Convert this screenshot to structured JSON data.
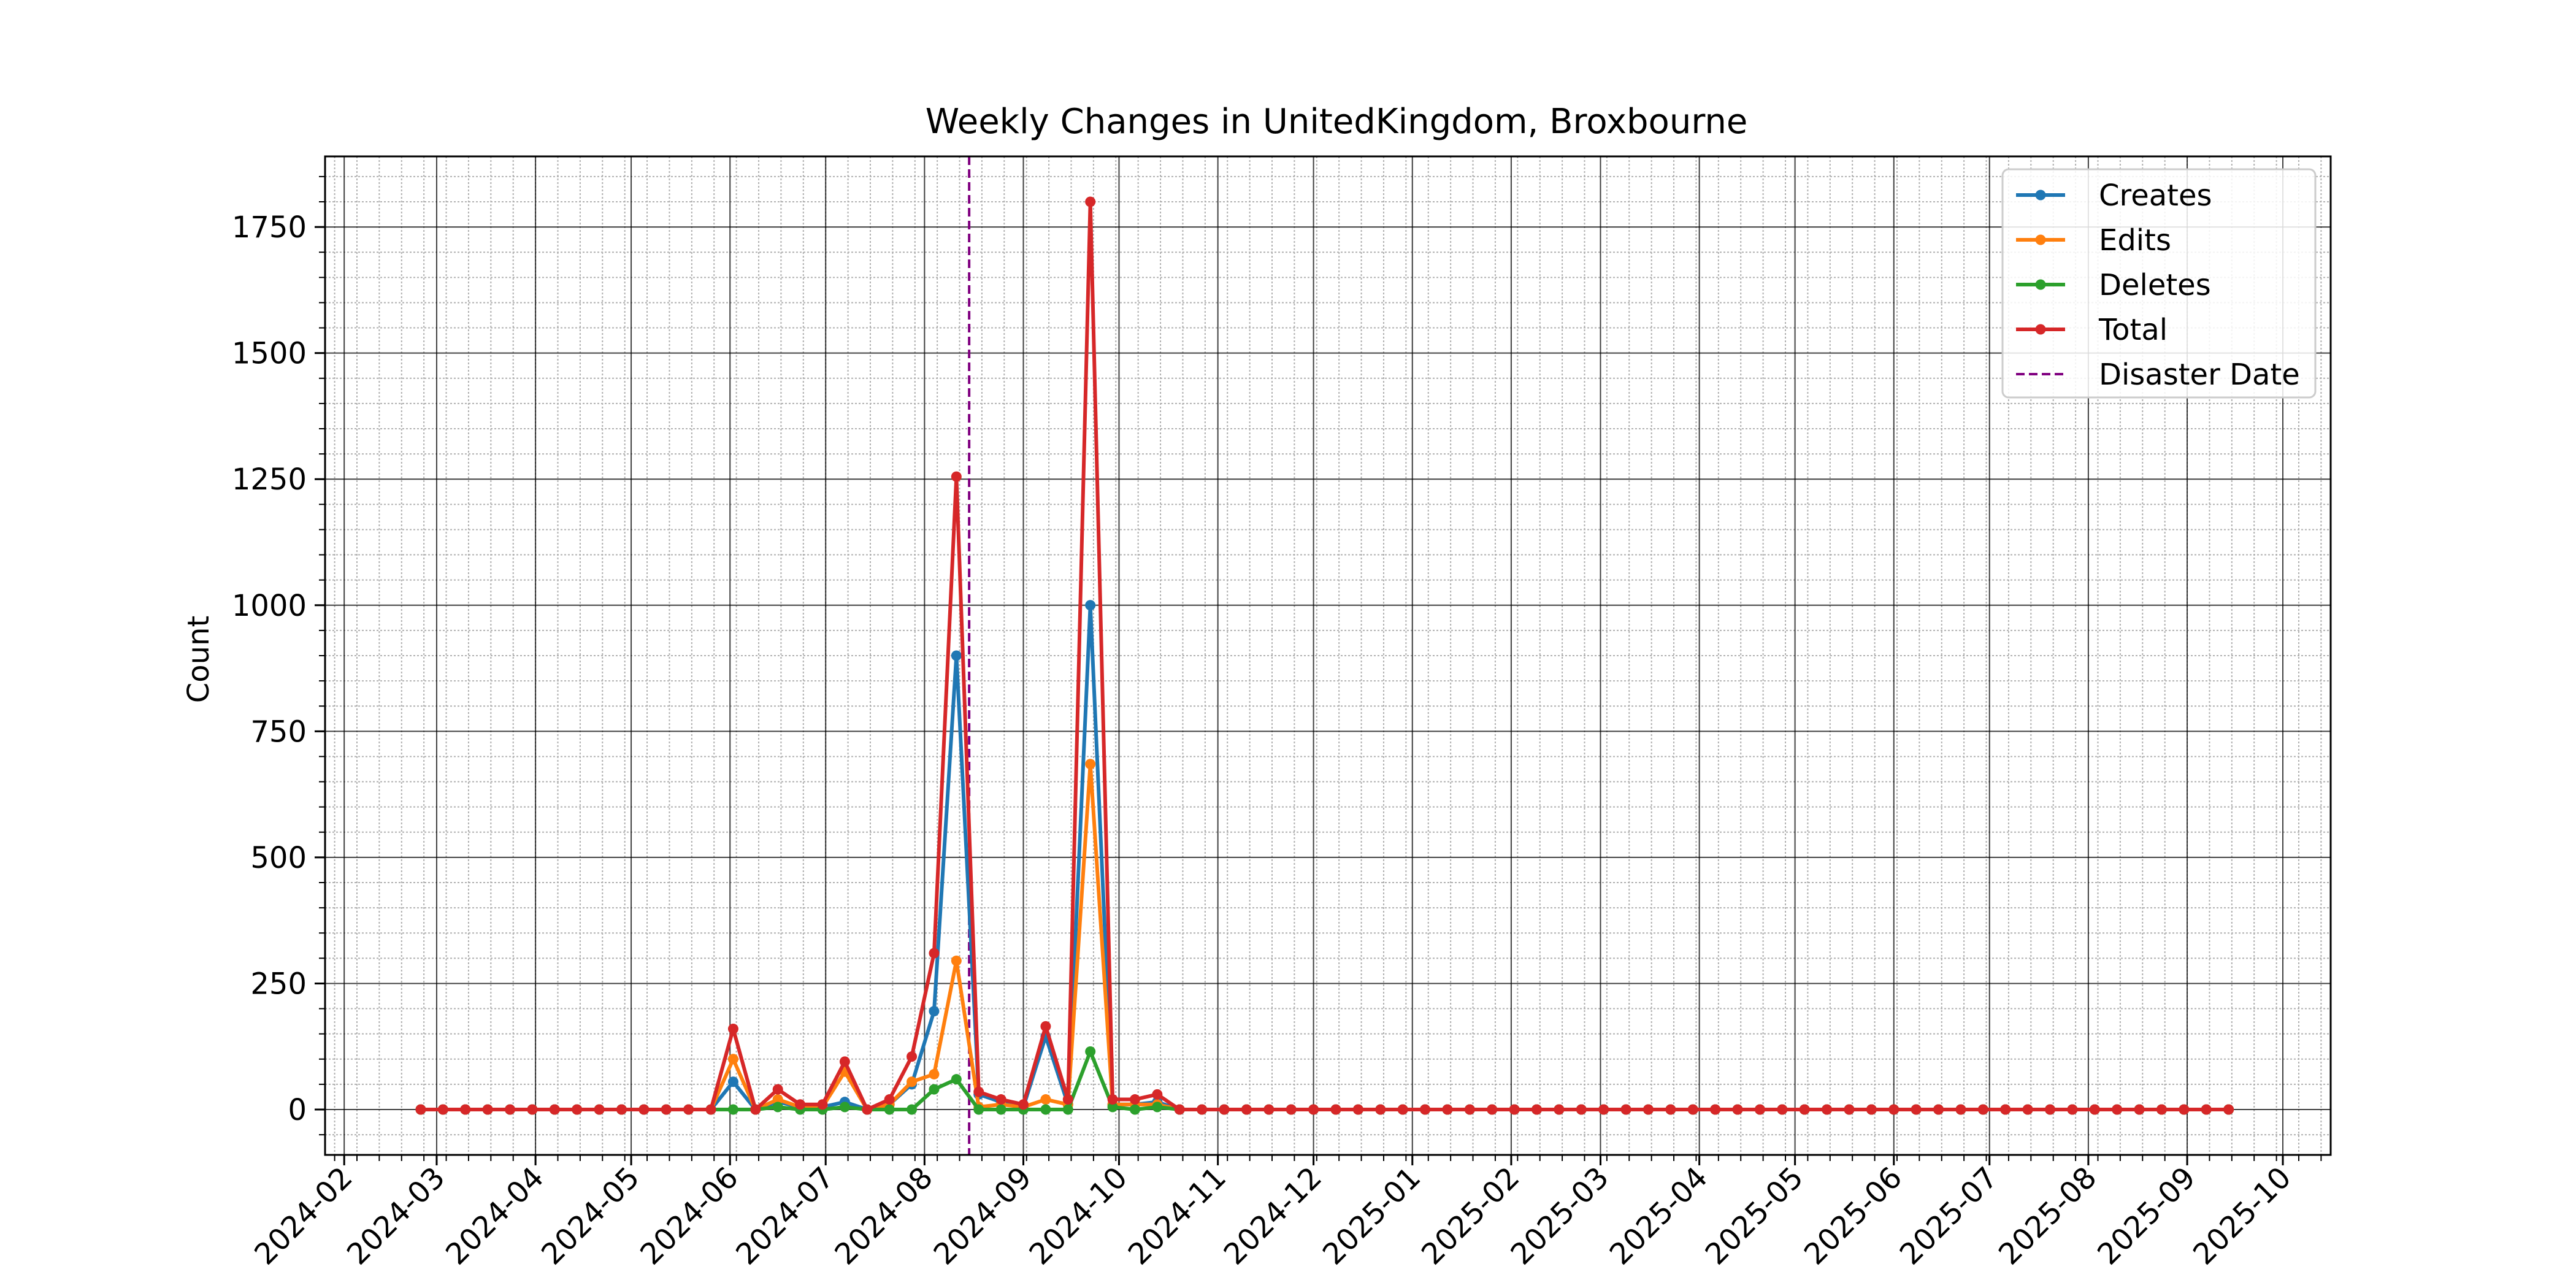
{
  "chart_data": {
    "type": "line",
    "title": "Weekly Changes in UnitedKingdom, Broxbourne",
    "xlabel": "",
    "ylabel": "Count",
    "ylim": [
      -90,
      1890
    ],
    "y_ticks": [
      0,
      250,
      500,
      750,
      1000,
      1250,
      1500,
      1750
    ],
    "x_axis": {
      "type": "date",
      "range": [
        "2024-01-26",
        "2025-10-16"
      ],
      "tick_dates": [
        "2024-02-01",
        "2024-03-01",
        "2024-04-01",
        "2024-05-01",
        "2024-06-01",
        "2024-07-01",
        "2024-08-01",
        "2024-09-01",
        "2024-10-01",
        "2024-11-01",
        "2024-12-01",
        "2025-01-01",
        "2025-02-01",
        "2025-03-01",
        "2025-04-01",
        "2025-05-01",
        "2025-06-01",
        "2025-07-01",
        "2025-08-01",
        "2025-09-01",
        "2025-10-01"
      ],
      "tick_labels": [
        "2024-02",
        "2024-03",
        "2024-04",
        "2024-05",
        "2024-06",
        "2024-07",
        "2024-08",
        "2024-09",
        "2024-10",
        "2024-11",
        "2024-12",
        "2025-01",
        "2025-02",
        "2025-03",
        "2025-04",
        "2025-05",
        "2025-06",
        "2025-07",
        "2025-08",
        "2025-09",
        "2025-10"
      ]
    },
    "grid": true,
    "legend": "top-right",
    "dates": [
      "2024-02-25",
      "2024-03-03",
      "2024-03-10",
      "2024-03-17",
      "2024-03-24",
      "2024-03-31",
      "2024-04-07",
      "2024-04-14",
      "2024-04-21",
      "2024-04-28",
      "2024-05-05",
      "2024-05-12",
      "2024-05-19",
      "2024-05-26",
      "2024-06-02",
      "2024-06-09",
      "2024-06-16",
      "2024-06-23",
      "2024-06-30",
      "2024-07-07",
      "2024-07-14",
      "2024-07-21",
      "2024-07-28",
      "2024-08-04",
      "2024-08-11",
      "2024-08-18",
      "2024-08-25",
      "2024-09-01",
      "2024-09-08",
      "2024-09-15",
      "2024-09-22",
      "2024-09-29",
      "2024-10-06",
      "2024-10-13",
      "2024-10-20",
      "2024-10-27",
      "2024-11-03",
      "2024-11-10",
      "2024-11-17",
      "2024-11-24",
      "2024-12-01",
      "2024-12-08",
      "2024-12-15",
      "2024-12-22",
      "2024-12-29",
      "2025-01-05",
      "2025-01-12",
      "2025-01-19",
      "2025-01-26",
      "2025-02-02",
      "2025-02-09",
      "2025-02-16",
      "2025-02-23",
      "2025-03-02",
      "2025-03-09",
      "2025-03-16",
      "2025-03-23",
      "2025-03-30",
      "2025-04-06",
      "2025-04-13",
      "2025-04-20",
      "2025-04-27",
      "2025-05-04",
      "2025-05-11",
      "2025-05-18",
      "2025-05-25",
      "2025-06-01",
      "2025-06-08",
      "2025-06-15",
      "2025-06-22",
      "2025-06-29",
      "2025-07-06",
      "2025-07-13",
      "2025-07-20",
      "2025-07-27",
      "2025-08-03",
      "2025-08-10",
      "2025-08-17",
      "2025-08-24",
      "2025-08-31",
      "2025-09-07",
      "2025-09-14"
    ],
    "series": [
      {
        "name": "Creates",
        "color": "#1f77b4",
        "values": [
          0,
          0,
          0,
          0,
          0,
          0,
          0,
          0,
          0,
          0,
          0,
          0,
          0,
          0,
          55,
          0,
          15,
          5,
          5,
          15,
          0,
          10,
          50,
          195,
          900,
          30,
          15,
          5,
          145,
          10,
          1000,
          10,
          10,
          15,
          0,
          0,
          0,
          0,
          0,
          0,
          0,
          0,
          0,
          0,
          0,
          0,
          0,
          0,
          0,
          0,
          0,
          0,
          0,
          0,
          0,
          0,
          0,
          0,
          0,
          0,
          0,
          0,
          0,
          0,
          0,
          0,
          0,
          0,
          0,
          0,
          0,
          0,
          0,
          0,
          0,
          0,
          0,
          0,
          0,
          0,
          0,
          0
        ]
      },
      {
        "name": "Edits",
        "color": "#ff7f0e",
        "values": [
          0,
          0,
          0,
          0,
          0,
          0,
          0,
          0,
          0,
          0,
          0,
          0,
          0,
          0,
          100,
          0,
          20,
          5,
          5,
          75,
          0,
          10,
          55,
          70,
          295,
          5,
          10,
          5,
          20,
          10,
          685,
          10,
          10,
          10,
          0,
          0,
          0,
          0,
          0,
          0,
          0,
          0,
          0,
          0,
          0,
          0,
          0,
          0,
          0,
          0,
          0,
          0,
          0,
          0,
          0,
          0,
          0,
          0,
          0,
          0,
          0,
          0,
          0,
          0,
          0,
          0,
          0,
          0,
          0,
          0,
          0,
          0,
          0,
          0,
          0,
          0,
          0,
          0,
          0,
          0,
          0,
          0
        ]
      },
      {
        "name": "Deletes",
        "color": "#2ca02c",
        "values": [
          0,
          0,
          0,
          0,
          0,
          0,
          0,
          0,
          0,
          0,
          0,
          0,
          0,
          0,
          0,
          0,
          5,
          0,
          0,
          5,
          0,
          0,
          0,
          40,
          60,
          0,
          0,
          0,
          0,
          0,
          115,
          5,
          0,
          5,
          0,
          0,
          0,
          0,
          0,
          0,
          0,
          0,
          0,
          0,
          0,
          0,
          0,
          0,
          0,
          0,
          0,
          0,
          0,
          0,
          0,
          0,
          0,
          0,
          0,
          0,
          0,
          0,
          0,
          0,
          0,
          0,
          0,
          0,
          0,
          0,
          0,
          0,
          0,
          0,
          0,
          0,
          0,
          0,
          0,
          0,
          0,
          0
        ]
      },
      {
        "name": "Total",
        "color": "#d62728",
        "values": [
          0,
          0,
          0,
          0,
          0,
          0,
          0,
          0,
          0,
          0,
          0,
          0,
          0,
          0,
          160,
          0,
          40,
          10,
          10,
          95,
          0,
          20,
          105,
          310,
          1255,
          35,
          20,
          10,
          165,
          20,
          1800,
          20,
          20,
          30,
          0,
          0,
          0,
          0,
          0,
          0,
          0,
          0,
          0,
          0,
          0,
          0,
          0,
          0,
          0,
          0,
          0,
          0,
          0,
          0,
          0,
          0,
          0,
          0,
          0,
          0,
          0,
          0,
          0,
          0,
          0,
          0,
          0,
          0,
          0,
          0,
          0,
          0,
          0,
          0,
          0,
          0,
          0,
          0,
          0,
          0,
          0,
          0
        ]
      }
    ],
    "annotations": [
      {
        "name": "Disaster Date",
        "type": "vline",
        "date": "2024-08-15",
        "color": "#800080",
        "style": "dashed"
      }
    ]
  }
}
